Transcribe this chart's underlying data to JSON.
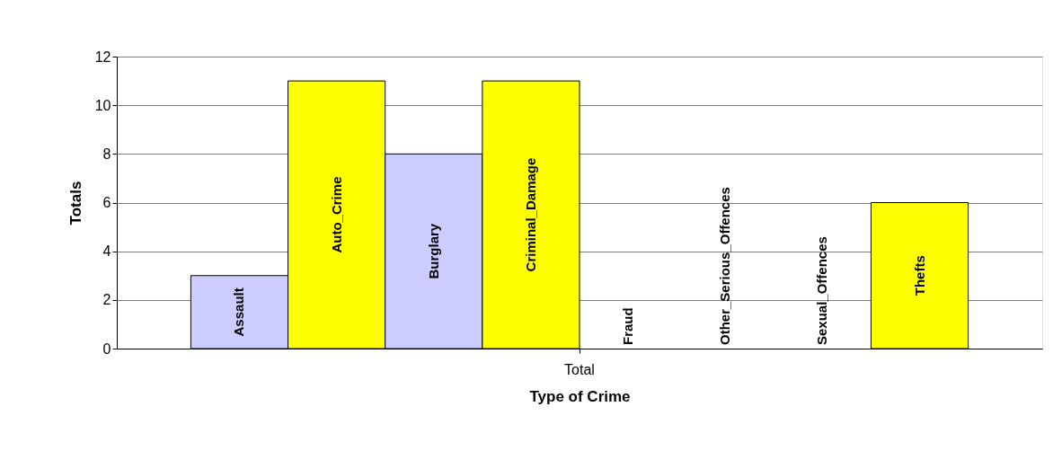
{
  "chart_data": {
    "type": "bar",
    "xlabel": "Type of Crime",
    "ylabel": "Totals",
    "categories": [
      "Total"
    ],
    "ylim": [
      0,
      12
    ],
    "yticks": [
      0,
      2,
      4,
      6,
      8,
      10,
      12
    ],
    "grid": "y",
    "legend": false,
    "series": [
      {
        "name": "Assault",
        "color": "#ccccff",
        "values": [
          3
        ]
      },
      {
        "name": "Auto_Crime",
        "color": "#ffff00",
        "values": [
          11
        ]
      },
      {
        "name": "Burglary",
        "color": "#ccccff",
        "values": [
          8
        ]
      },
      {
        "name": "Criminal_Damage",
        "color": "#ffff00",
        "values": [
          11
        ]
      },
      {
        "name": "Fraud",
        "values": [
          0
        ]
      },
      {
        "name": "Other_Serious_Offences",
        "values": [
          0
        ]
      },
      {
        "name": "Sexual_Offences",
        "values": [
          0
        ]
      },
      {
        "name": "Thefts",
        "color": "#ffff00",
        "values": [
          6
        ]
      }
    ]
  }
}
